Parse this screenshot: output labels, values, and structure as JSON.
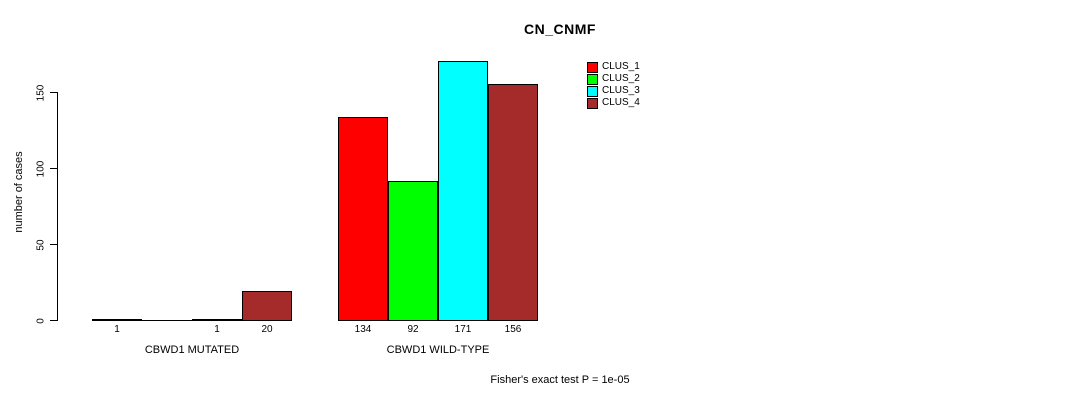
{
  "chart_data": {
    "type": "bar",
    "title": "CN_CNMF",
    "ylabel": "number of cases",
    "yticks": [
      0,
      50,
      100,
      150
    ],
    "ylim": [
      0,
      175
    ],
    "grid": false,
    "legend_position": "top-right",
    "categories": [
      "CBWD1 MUTATED",
      "CBWD1 WILD-TYPE"
    ],
    "series": [
      {
        "name": "CLUS_1",
        "color": "#FF0000",
        "values": [
          1,
          134
        ]
      },
      {
        "name": "CLUS_2",
        "color": "#00FF00",
        "values": [
          0,
          92
        ]
      },
      {
        "name": "CLUS_3",
        "color": "#00FFFF",
        "values": [
          1,
          171
        ]
      },
      {
        "name": "CLUS_4",
        "color": "#A52A2A",
        "values": [
          20,
          156
        ]
      }
    ],
    "bar_value_labels": [
      [
        "1",
        "",
        "1",
        "20"
      ],
      [
        "134",
        "92",
        "171",
        "156"
      ]
    ],
    "annotation": "Fisher's exact test P = 1e-05",
    "colors": {
      "background": "#FFFFFF",
      "axis": "#000000",
      "bar_border": "#000000"
    }
  }
}
